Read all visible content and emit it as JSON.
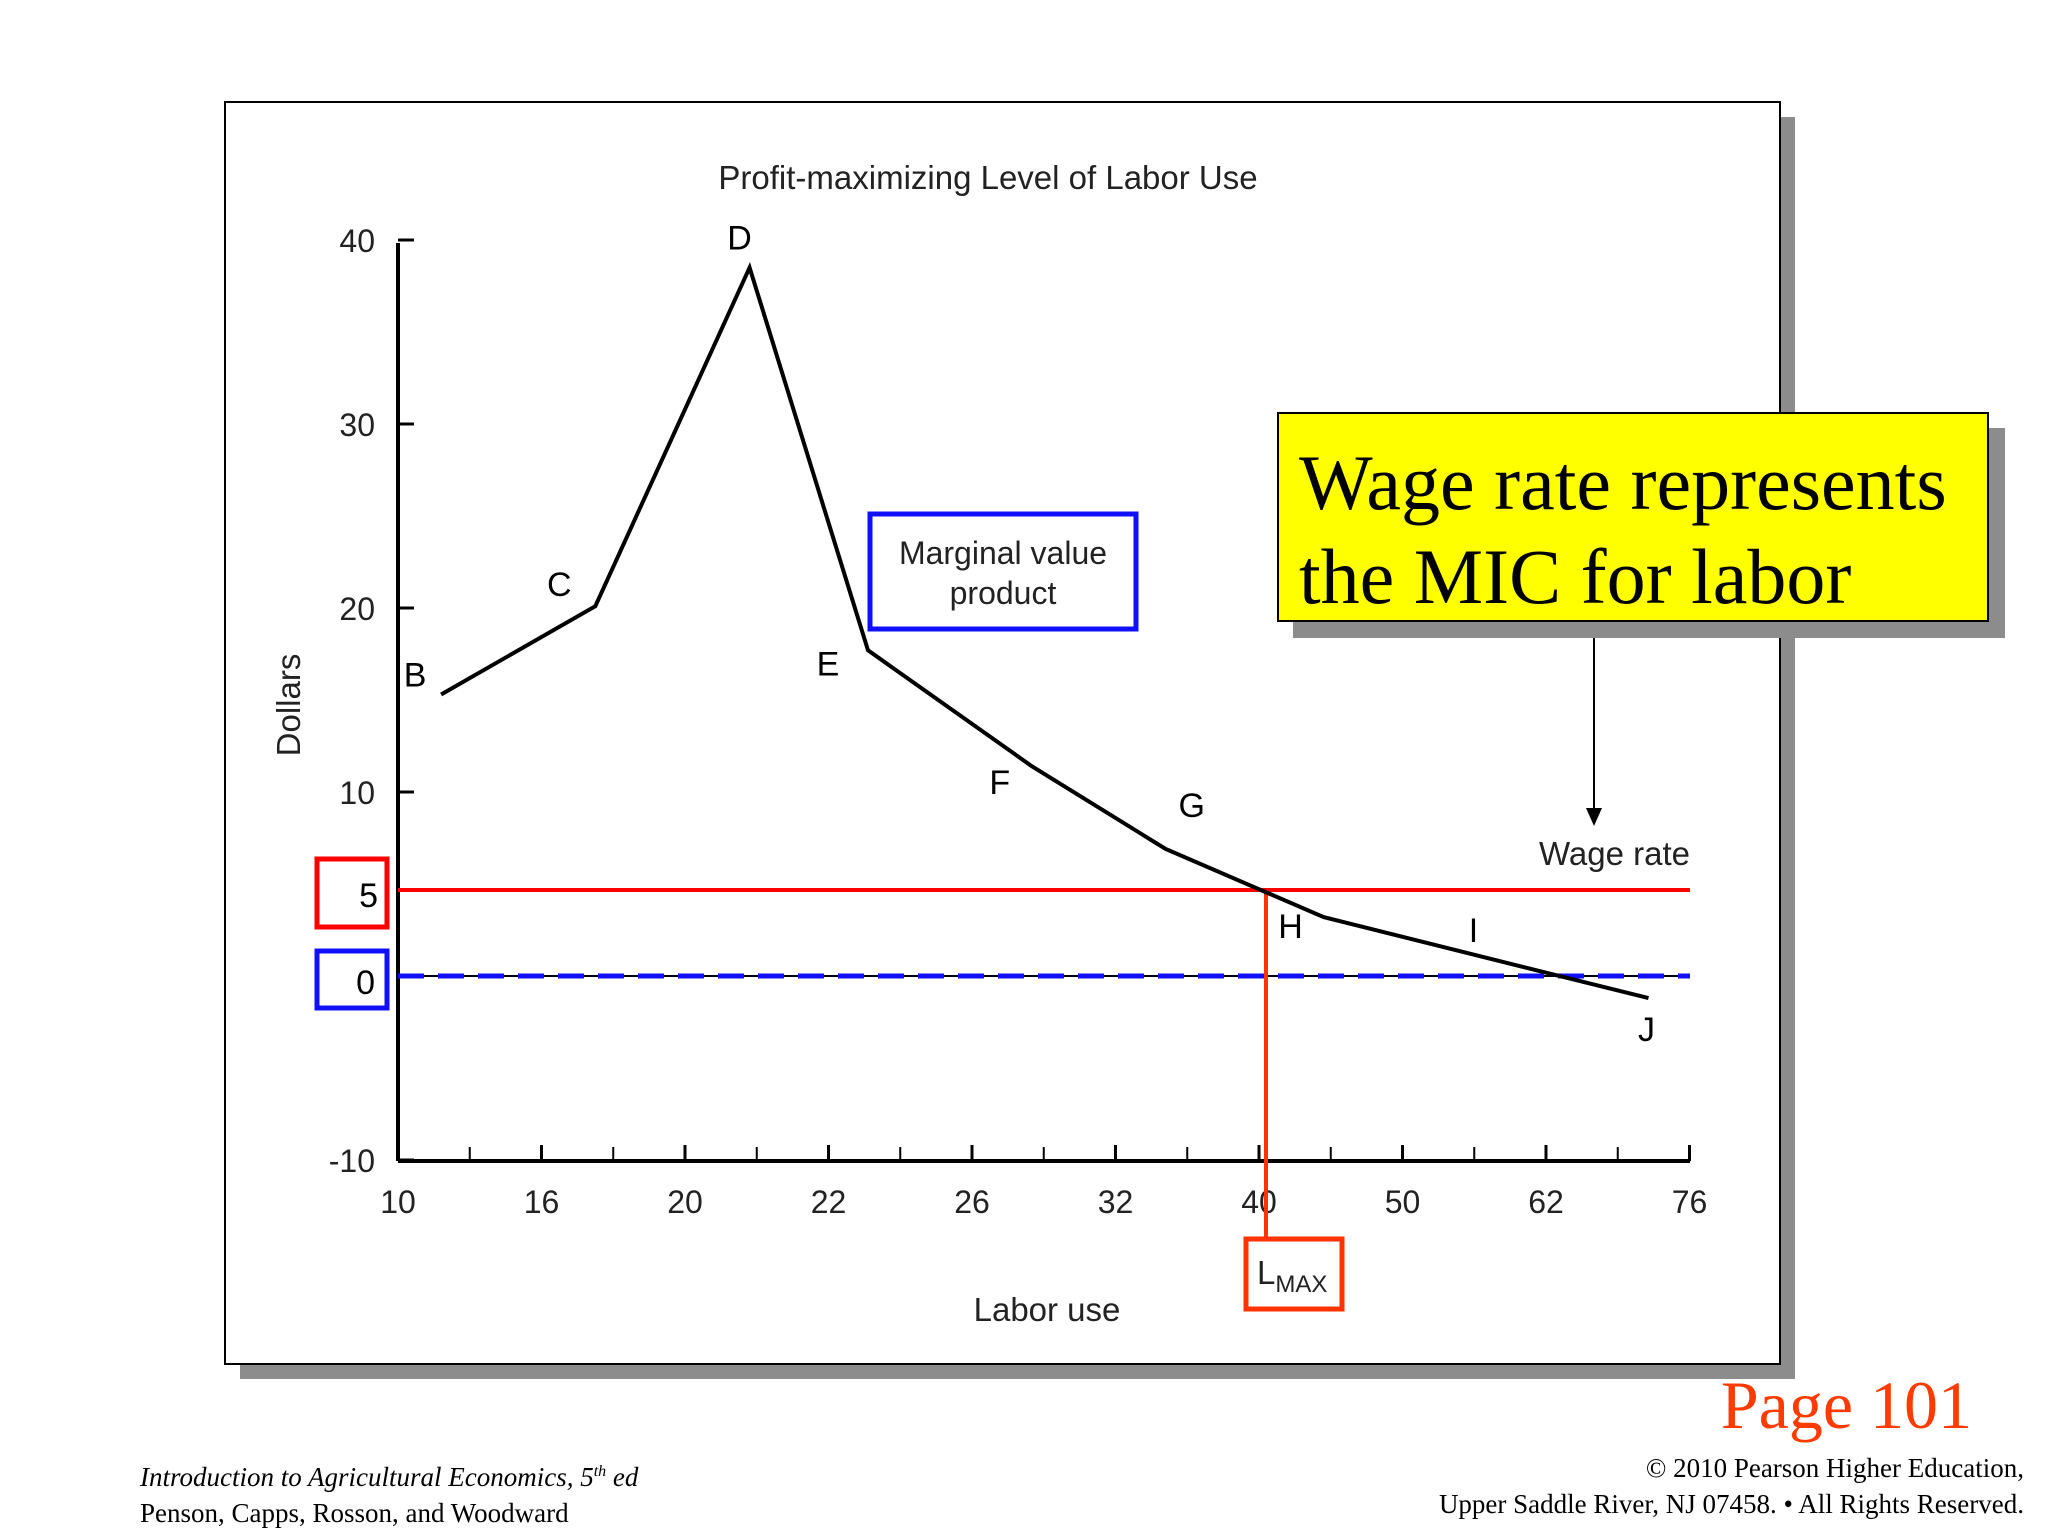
{
  "chart_data": {
    "type": "line",
    "title": "Profit-maximizing Level of Labor Use",
    "xlabel": "Labor use",
    "ylabel": "Dollars",
    "x_ticks": [
      "10",
      "16",
      "20",
      "22",
      "26",
      "32",
      "40",
      "50",
      "62",
      "76"
    ],
    "y_ticks": [
      "40",
      "30",
      "20",
      "10",
      "-10"
    ],
    "ylim": [
      -10,
      40
    ],
    "grid": false,
    "series": [
      {
        "name": "Marginal value product",
        "points": [
          {
            "label": "B",
            "x": 11.8,
            "y": 15.3
          },
          {
            "label": "C",
            "x": 17.5,
            "y": 20.1
          },
          {
            "label": "D",
            "x": 20.9,
            "y": 38.5
          },
          {
            "label": "E",
            "x": 23.1,
            "y": 17.7
          },
          {
            "label": "F",
            "x": 28.5,
            "y": 11.4
          },
          {
            "label": "G",
            "x": 34.8,
            "y": 6.9
          },
          {
            "label": "H",
            "x": 44.5,
            "y": 3.2
          },
          {
            "label": "I",
            "x": 55.1,
            "y": 1.3
          },
          {
            "label": "J",
            "x": 72,
            "y": -1.2
          }
        ]
      }
    ],
    "wage_rate": {
      "label": "Wage rate",
      "value": 5
    },
    "zero_line": {
      "value": 0
    },
    "highlighted_ticks": [
      "5",
      "0"
    ],
    "l_max": {
      "label": "L",
      "subscript": "MAX",
      "x": 40.2
    },
    "mvp_label": [
      "Marginal value",
      "product"
    ],
    "colors": {
      "mvp": "#000000",
      "wage": "#ff0000",
      "zero": "#1010ff",
      "lmax": "#ff3300"
    }
  },
  "callout": {
    "line1": "Wage rate represents",
    "line2": "the MIC for labor"
  },
  "page_ref": "Page 101",
  "footer_left": {
    "book": "Introduction to Agricultural Economics, 5",
    "sup": "th",
    "ed": " ed",
    "authors": "Penson, Capps, Rosson, and Woodward"
  },
  "footer_right": {
    "line1": "© 2010 Pearson Higher Education,",
    "line2": "Upper Saddle River, NJ 07458. • All Rights Reserved."
  }
}
